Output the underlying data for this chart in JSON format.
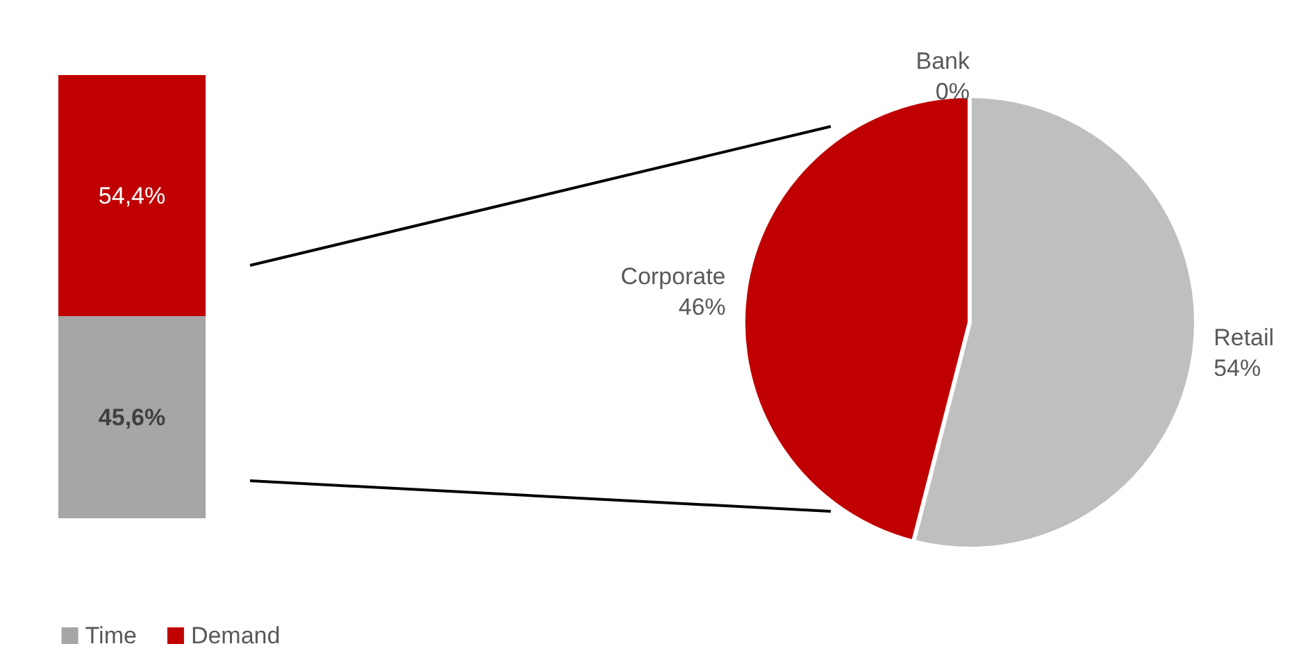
{
  "chart_data": [
    {
      "type": "bar",
      "stacked": true,
      "categories": [
        null
      ],
      "legend": "bottom",
      "data_labels": true,
      "series": [
        {
          "name": "Time",
          "color": "#a6a6a6",
          "values": [
            45.6
          ],
          "value_labels": [
            "45,6%"
          ]
        },
        {
          "name": "Demand",
          "color": "#c00000",
          "values": [
            54.4
          ],
          "value_labels": [
            "54,4%"
          ]
        }
      ]
    },
    {
      "type": "pie",
      "categories": [
        "Retail",
        "Corporate",
        "Bank"
      ],
      "values": [
        54,
        46,
        0
      ],
      "value_labels": [
        "54%",
        "46%",
        "0%"
      ],
      "colors": [
        "#bfbfbf",
        "#c00000",
        "#7f7f7f"
      ],
      "data_labels": true,
      "legend": false
    }
  ]
}
